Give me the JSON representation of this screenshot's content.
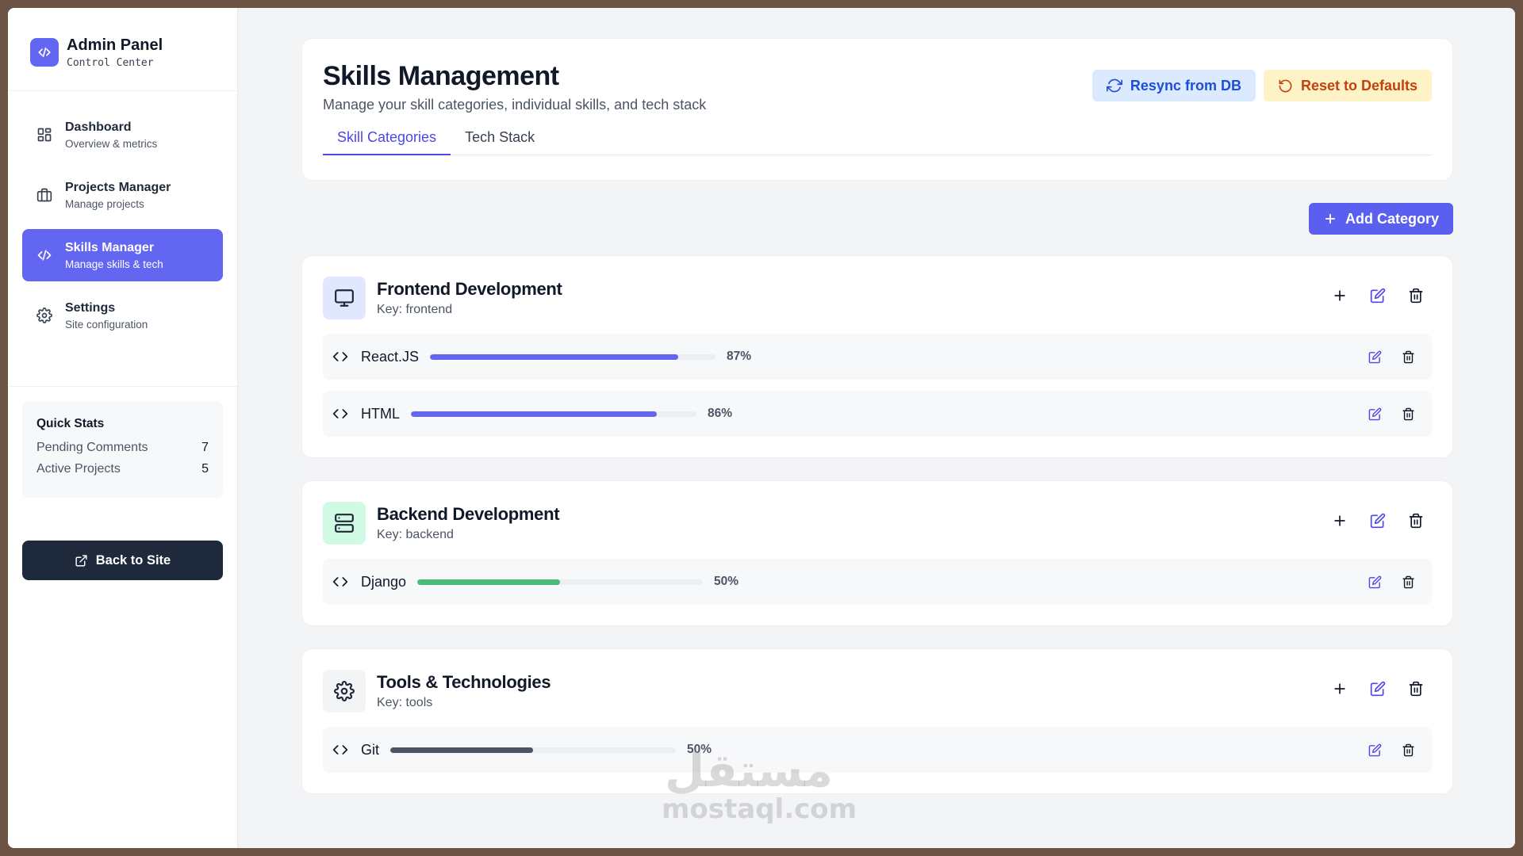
{
  "brand": {
    "title": "Admin Panel",
    "subtitle": "Control Center"
  },
  "nav": [
    {
      "label": "Dashboard",
      "sub": "Overview & metrics",
      "icon": "grid-icon",
      "active": false
    },
    {
      "label": "Projects Manager",
      "sub": "Manage projects",
      "icon": "briefcase-icon",
      "active": false
    },
    {
      "label": "Skills Manager",
      "sub": "Manage skills & tech",
      "icon": "code-icon",
      "active": true
    },
    {
      "label": "Settings",
      "sub": "Site configuration",
      "icon": "gear-icon",
      "active": false
    }
  ],
  "quick_stats": {
    "title": "Quick Stats",
    "rows": [
      {
        "label": "Pending Comments",
        "value": "7"
      },
      {
        "label": "Active Projects",
        "value": "5"
      }
    ]
  },
  "back_button": "Back to Site",
  "header": {
    "title": "Skills Management",
    "subtitle": "Manage your skill categories, individual skills, and tech stack",
    "resync_label": "Resync from DB",
    "reset_label": "Reset to Defaults",
    "tabs": [
      {
        "label": "Skill Categories",
        "active": true
      },
      {
        "label": "Tech Stack",
        "active": false
      }
    ]
  },
  "add_category_label": "Add Category",
  "colors": {
    "accent": "#6366f1",
    "frontend_bar": "#6366f1",
    "backend_bar": "#48bb78",
    "tools_bar": "#4b5563"
  },
  "categories": [
    {
      "name": "Frontend Development",
      "key_text": "Key: frontend",
      "icon": "monitor-icon",
      "skills": [
        {
          "name": "React.JS",
          "percent_text": "87%",
          "level": 0.87
        },
        {
          "name": "HTML",
          "percent_text": "86%",
          "level": 0.86
        }
      ]
    },
    {
      "name": "Backend Development",
      "key_text": "Key: backend",
      "icon": "server-icon",
      "skills": [
        {
          "name": "Django",
          "percent_text": "50%",
          "level": 0.5
        }
      ]
    },
    {
      "name": "Tools & Technologies",
      "key_text": "Key: tools",
      "icon": "gear-icon",
      "skills": [
        {
          "name": "Git",
          "percent_text": "50%",
          "level": 0.5
        }
      ]
    }
  ],
  "watermark": {
    "arabic": "مستقل",
    "latin": "mostaql.com"
  }
}
